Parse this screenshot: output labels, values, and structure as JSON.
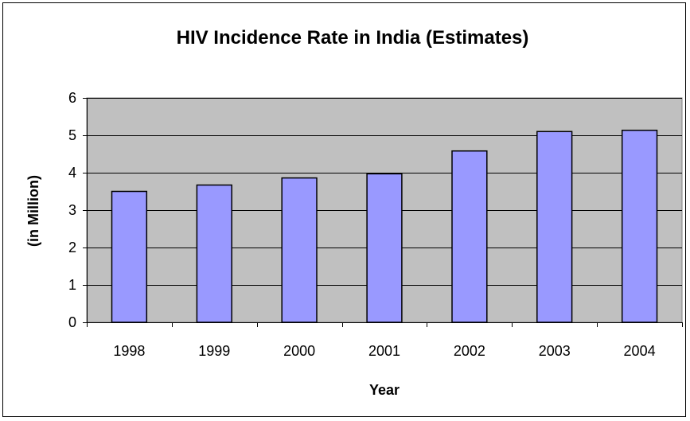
{
  "chart_data": {
    "type": "bar",
    "title": "HIV Incidence Rate in India (Estimates)",
    "xlabel": "Year",
    "ylabel": "(in Million)",
    "categories": [
      "1998",
      "1999",
      "2000",
      "2001",
      "2002",
      "2003",
      "2004"
    ],
    "values": [
      3.5,
      3.67,
      3.86,
      3.97,
      4.58,
      5.1,
      5.134
    ],
    "ylim": [
      0,
      6
    ],
    "yticks": [
      "0",
      "1",
      "2",
      "3",
      "4",
      "5",
      "6"
    ],
    "grid": true,
    "legend": "none",
    "colors": {
      "plot_background": "#c0c0c0",
      "bar_fill": "#9999ff",
      "bar_stroke": "#000000",
      "gridline": "#000000"
    }
  }
}
